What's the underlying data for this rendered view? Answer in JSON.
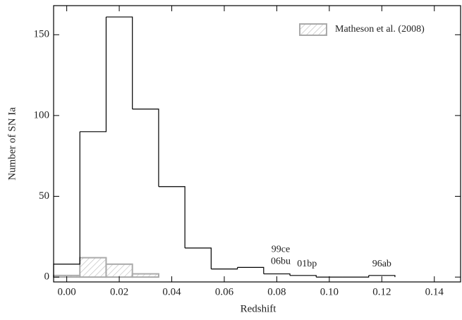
{
  "chart_data": {
    "type": "histogram",
    "xlabel": "Redshift",
    "ylabel": "Number of SN Ia",
    "bins": [
      -0.005,
      0.005,
      0.015,
      0.025,
      0.035,
      0.045,
      0.055,
      0.065,
      0.075,
      0.085,
      0.095,
      0.105,
      0.115,
      0.125
    ],
    "series": [
      {
        "color": "#000000",
        "values": [
          8,
          90,
          161,
          104,
          56,
          18,
          5,
          6,
          2,
          1,
          0,
          0,
          1
        ]
      },
      {
        "name": "Matheson et al. (2008)",
        "color": "#aaaaaa",
        "hatch": true,
        "values": [
          1,
          12,
          8,
          2,
          0,
          0,
          0,
          0,
          0,
          0,
          0,
          0,
          0
        ]
      }
    ],
    "annotations": [
      {
        "text": "99ce",
        "x": 0.0815,
        "y": 13.5
      },
      {
        "text": "06bu",
        "x": 0.0815,
        "y": 6
      },
      {
        "text": "01bp",
        "x": 0.0915,
        "y": 4.5
      },
      {
        "text": "96ab",
        "x": 0.12,
        "y": 4.5
      }
    ],
    "xlim": [
      -0.005,
      0.15
    ],
    "ylim": [
      -3,
      168
    ],
    "xticks": [
      {
        "value": 0,
        "label": "0.00"
      },
      {
        "value": 0.02,
        "label": "0.02"
      },
      {
        "value": 0.04,
        "label": "0.04"
      },
      {
        "value": 0.06,
        "label": "0.06"
      },
      {
        "value": 0.08,
        "label": "0.08"
      },
      {
        "value": 0.1,
        "label": "0.10"
      },
      {
        "value": 0.12,
        "label": "0.12"
      },
      {
        "value": 0.14,
        "label": "0.14"
      }
    ],
    "yticks": [
      0,
      50,
      100,
      150
    ],
    "legend": "upper right"
  }
}
